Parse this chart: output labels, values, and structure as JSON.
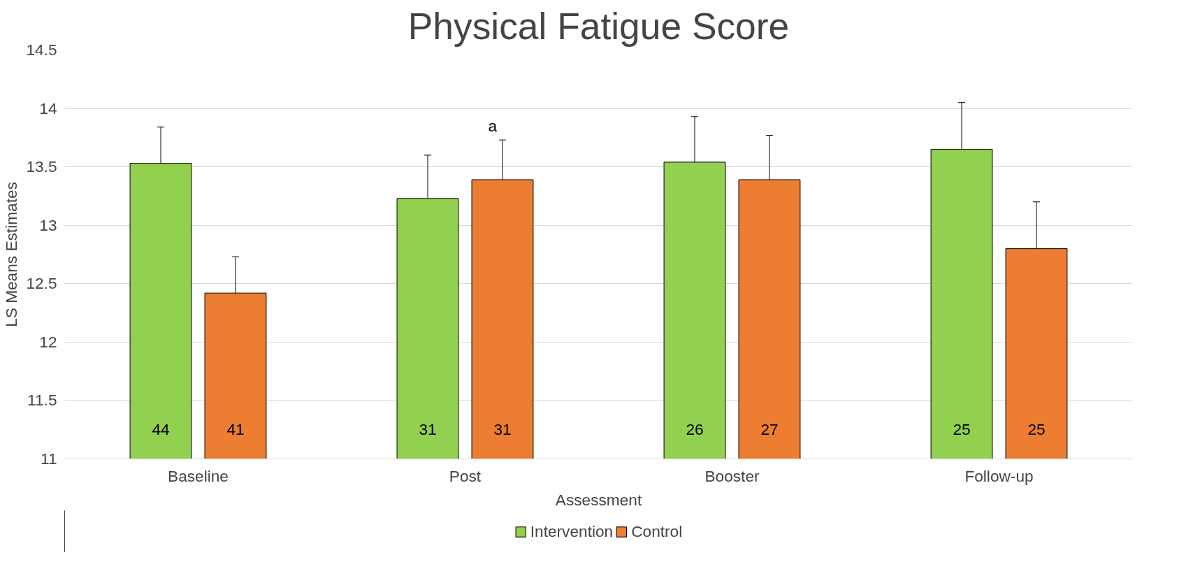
{
  "chart_data": {
    "type": "bar",
    "title": "Physical Fatigue Score",
    "xlabel": "Assessment",
    "ylabel": "LS Means Estimates",
    "categories": [
      "Baseline",
      "Post",
      "Booster",
      "Follow-up"
    ],
    "series": [
      {
        "name": "Intervention",
        "color": "#92d050",
        "values": [
          13.53,
          13.23,
          13.54,
          13.65
        ],
        "errors": [
          0.31,
          0.37,
          0.39,
          0.4
        ]
      },
      {
        "name": "Control",
        "color": "#ed7d31",
        "values": [
          12.42,
          13.39,
          13.39,
          12.8
        ],
        "errors": [
          0.31,
          0.34,
          0.38,
          0.4
        ]
      }
    ],
    "annotations": [
      "44",
      "41",
      "31",
      "31",
      "26",
      "27",
      "25",
      "25",
      "a"
    ],
    "ylim": [
      11,
      14.5
    ],
    "yticks": [
      11,
      11.5,
      12,
      12.5,
      13,
      13.5,
      14,
      14.5
    ],
    "grid": "y",
    "legend": "bottom"
  }
}
